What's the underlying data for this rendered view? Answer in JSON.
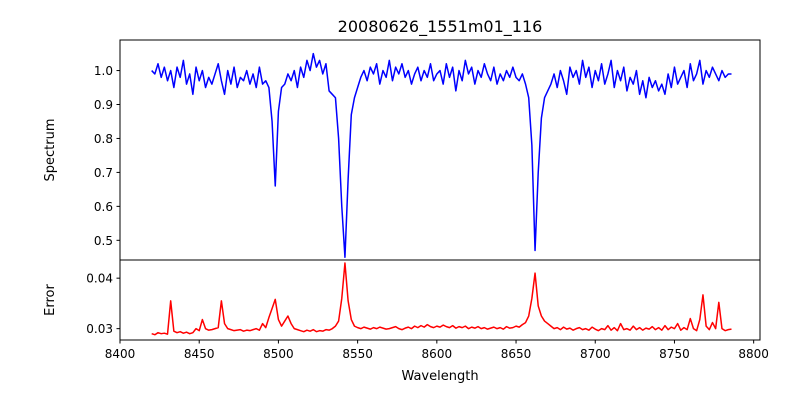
{
  "chart_data": [
    {
      "type": "line",
      "title": "20080626_1551m01_116",
      "ylabel": "Spectrum",
      "xlabel": "",
      "xlim": [
        8400,
        8804
      ],
      "ylim": [
        0.442,
        1.09
      ],
      "yticks": [
        "0.5",
        "0.6",
        "0.7",
        "0.8",
        "0.9",
        "1.0"
      ],
      "color": "#0000ff",
      "x_start": 8420,
      "x_step": 2,
      "values": [
        1.0,
        0.99,
        1.02,
        0.98,
        1.01,
        0.97,
        1.0,
        0.95,
        1.01,
        0.98,
        1.03,
        0.96,
        0.99,
        0.93,
        1.01,
        0.97,
        1.0,
        0.95,
        0.98,
        0.96,
        0.99,
        1.02,
        0.97,
        0.93,
        1.0,
        0.96,
        1.01,
        0.95,
        0.98,
        0.97,
        1.0,
        0.96,
        0.99,
        0.95,
        1.01,
        0.96,
        0.97,
        0.95,
        0.85,
        0.66,
        0.88,
        0.95,
        0.96,
        0.99,
        0.97,
        1.0,
        0.95,
        1.01,
        0.98,
        1.03,
        1.0,
        1.05,
        1.01,
        1.03,
        0.99,
        1.02,
        0.94,
        0.93,
        0.92,
        0.8,
        0.6,
        0.45,
        0.68,
        0.87,
        0.92,
        0.95,
        0.98,
        1.0,
        0.97,
        1.01,
        0.99,
        1.02,
        0.96,
        1.0,
        0.98,
        1.03,
        0.97,
        1.01,
        0.99,
        1.02,
        0.98,
        1.0,
        0.96,
        0.99,
        1.01,
        0.97,
        1.0,
        0.98,
        1.02,
        0.97,
        0.99,
        1.0,
        0.96,
        1.02,
        0.98,
        1.01,
        0.94,
        1.0,
        0.97,
        1.03,
        0.99,
        1.01,
        0.96,
        1.0,
        0.98,
        1.02,
        0.99,
        0.97,
        1.01,
        0.96,
        0.99,
        0.97,
        1.0,
        0.98,
        1.01,
        0.98,
        0.97,
        0.99,
        0.96,
        0.92,
        0.78,
        0.47,
        0.7,
        0.86,
        0.92,
        0.94,
        0.96,
        0.99,
        0.95,
        1.0,
        0.97,
        0.93,
        1.01,
        0.98,
        1.0,
        0.96,
        1.03,
        0.98,
        1.01,
        0.95,
        1.0,
        0.97,
        1.02,
        0.96,
        0.99,
        1.03,
        0.95,
        1.0,
        0.97,
        1.01,
        0.94,
        0.98,
        0.96,
        1.0,
        0.93,
        0.97,
        0.92,
        0.98,
        0.95,
        0.97,
        0.94,
        0.96,
        0.93,
        0.99,
        0.95,
        1.01,
        0.96,
        0.98,
        1.0,
        0.95,
        1.02,
        0.97,
        0.99,
        1.03,
        0.96,
        1.0,
        0.98,
        1.01,
        0.99,
        0.97,
        1.0,
        0.98,
        0.99,
        0.99
      ]
    },
    {
      "type": "line",
      "title": "",
      "ylabel": "Error",
      "xlabel": "Wavelength",
      "xlim": [
        8400,
        8804
      ],
      "ylim": [
        0.02775,
        0.0436
      ],
      "xticks": [
        "8400",
        "8450",
        "8500",
        "8550",
        "8600",
        "8650",
        "8700",
        "8750",
        "8800"
      ],
      "yticks": [
        "0.03",
        "0.04"
      ],
      "color": "#ff0000",
      "x_start": 8420,
      "x_step": 2,
      "values": [
        0.029,
        0.0288,
        0.0292,
        0.029,
        0.0291,
        0.0289,
        0.0355,
        0.0295,
        0.0292,
        0.0294,
        0.0291,
        0.0293,
        0.029,
        0.0292,
        0.03,
        0.0296,
        0.0318,
        0.03,
        0.0297,
        0.0298,
        0.03,
        0.0302,
        0.0355,
        0.031,
        0.03,
        0.0298,
        0.0296,
        0.0297,
        0.0298,
        0.0295,
        0.0297,
        0.0296,
        0.0298,
        0.03,
        0.0297,
        0.031,
        0.0302,
        0.0322,
        0.034,
        0.0358,
        0.0318,
        0.0305,
        0.0315,
        0.0325,
        0.031,
        0.03,
        0.0298,
        0.0296,
        0.0294,
        0.0297,
        0.0295,
        0.0298,
        0.0294,
        0.0296,
        0.0295,
        0.0298,
        0.0297,
        0.03,
        0.0305,
        0.0315,
        0.036,
        0.043,
        0.0355,
        0.0318,
        0.0305,
        0.0302,
        0.03,
        0.0303,
        0.0301,
        0.0299,
        0.0302,
        0.03,
        0.0303,
        0.0301,
        0.0299,
        0.03,
        0.0302,
        0.0304,
        0.03,
        0.0298,
        0.0301,
        0.0303,
        0.03,
        0.0305,
        0.0302,
        0.0306,
        0.0303,
        0.0308,
        0.0304,
        0.0302,
        0.0305,
        0.0303,
        0.0307,
        0.0304,
        0.0302,
        0.0306,
        0.0301,
        0.0304,
        0.0302,
        0.0305,
        0.03,
        0.0303,
        0.0301,
        0.0304,
        0.03,
        0.0302,
        0.0299,
        0.0301,
        0.0303,
        0.03,
        0.0302,
        0.0299,
        0.0304,
        0.0301,
        0.0302,
        0.0305,
        0.0303,
        0.0308,
        0.0312,
        0.0325,
        0.036,
        0.041,
        0.0345,
        0.0325,
        0.0315,
        0.031,
        0.0305,
        0.03,
        0.0302,
        0.0298,
        0.0303,
        0.0299,
        0.0301,
        0.0297,
        0.03,
        0.0302,
        0.0298,
        0.03,
        0.0297,
        0.0303,
        0.0299,
        0.0296,
        0.03,
        0.0298,
        0.0306,
        0.0297,
        0.0302,
        0.0296,
        0.031,
        0.0298,
        0.03,
        0.0297,
        0.0305,
        0.0298,
        0.0302,
        0.0297,
        0.0301,
        0.0299,
        0.0304,
        0.0298,
        0.0302,
        0.0297,
        0.0306,
        0.0298,
        0.0303,
        0.03,
        0.031,
        0.0297,
        0.0302,
        0.0298,
        0.032,
        0.03,
        0.0296,
        0.0318,
        0.0367,
        0.0305,
        0.0298,
        0.0312,
        0.03,
        0.0352,
        0.03,
        0.0296,
        0.0298,
        0.0299
      ]
    }
  ]
}
